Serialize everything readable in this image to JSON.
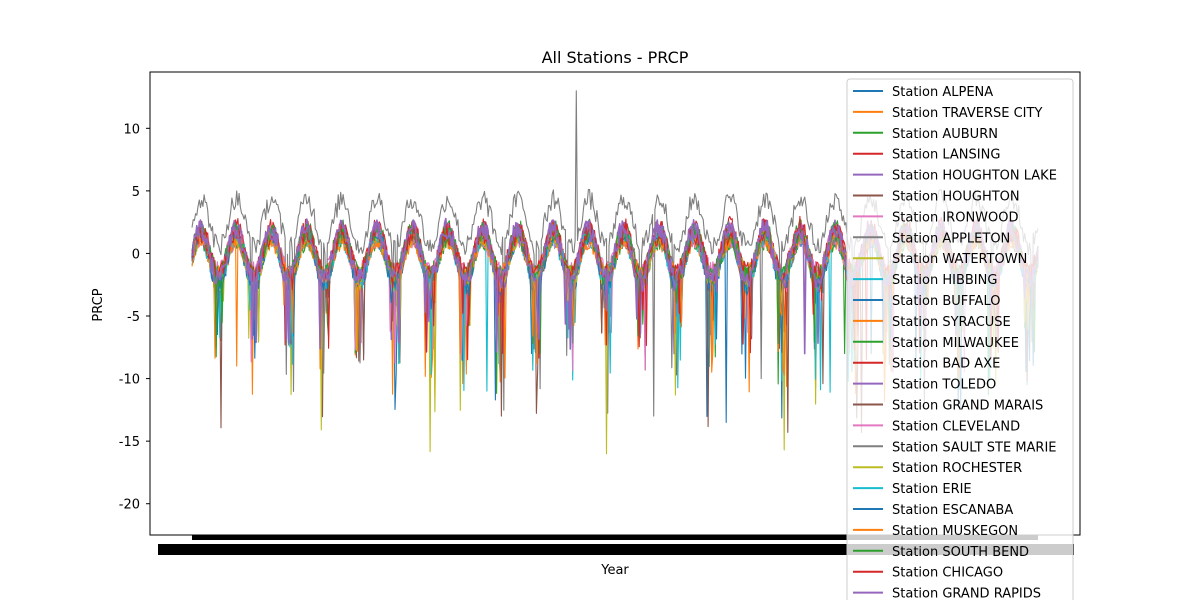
{
  "chart_data": {
    "type": "line",
    "title": "All Stations - PRCP",
    "xlabel": "Year",
    "ylabel": "PRCP",
    "ylim": [
      -22.5,
      14.5
    ],
    "yticks": [
      -20,
      -15,
      -10,
      -5,
      0,
      5,
      10
    ],
    "grid": false,
    "legend_position": "right, overflowing below plot",
    "x_tick_labels_overlapping": true,
    "series_pattern": "seasonal oscillation, about 24 cycles across the x range",
    "series": [
      {
        "name": "Station ALPENA",
        "color": "#1f77b4",
        "approx_max": 1.5,
        "approx_min": -13.5
      },
      {
        "name": "Station TRAVERSE CITY",
        "color": "#ff7f0e",
        "approx_max": 2.5,
        "approx_min": -12.0
      },
      {
        "name": "Station AUBURN",
        "color": "#2ca02c",
        "approx_max": 3.8,
        "approx_min": -11.3
      },
      {
        "name": "Station LANSING",
        "color": "#d62728",
        "approx_max": 3.5,
        "approx_min": -8.5
      },
      {
        "name": "Station HOUGHTON LAKE",
        "color": "#9467bd",
        "approx_max": 2.5,
        "approx_min": -8.0
      },
      {
        "name": "Station HOUGHTON",
        "color": "#8c564b",
        "approx_max": 2.0,
        "approx_min": -14.3
      },
      {
        "name": "Station IRONWOOD",
        "color": "#e377c2",
        "approx_max": 3.4,
        "approx_min": -9.5
      },
      {
        "name": "Station APPLETON",
        "color": "#7f7f7f",
        "approx_max": 13.0,
        "approx_min": -13.0
      },
      {
        "name": "Station WATERTOWN",
        "color": "#bcbd22",
        "approx_max": 1.5,
        "approx_min": -16.0
      },
      {
        "name": "Station HIBBING",
        "color": "#17becf",
        "approx_max": 1.6,
        "approx_min": -11.0
      },
      {
        "name": "Station BUFFALO",
        "color": "#1f77b4",
        "approx_max": 1.2,
        "approx_min": -9.0
      },
      {
        "name": "Station SYRACUSE",
        "color": "#ff7f0e",
        "approx_max": 1.5,
        "approx_min": -11.9
      },
      {
        "name": "Station MILWAUKEE",
        "color": "#2ca02c",
        "approx_max": 2.0,
        "approx_min": -8.0
      },
      {
        "name": "Station BAD AXE",
        "color": "#d62728",
        "approx_max": 3.2,
        "approx_min": -8.5
      },
      {
        "name": "Station TOLEDO",
        "color": "#9467bd",
        "approx_max": 2.8,
        "approx_min": -7.0
      },
      {
        "name": "Station GRAND MARAIS",
        "color": "#8c564b",
        "approx_max": 1.8,
        "approx_min": -14.3
      },
      {
        "name": "Station CLEVELAND",
        "color": "#e377c2",
        "approx_max": 2.0,
        "approx_min": -9.5
      },
      {
        "name": "Station SAULT STE MARIE",
        "color": "#7f7f7f",
        "approx_max": 2.0,
        "approx_min": -10.0
      },
      {
        "name": "Station ROCHESTER",
        "color": "#bcbd22",
        "approx_max": 1.5,
        "approx_min": -8.0
      },
      {
        "name": "Station ERIE",
        "color": "#17becf",
        "approx_max": 1.8,
        "approx_min": -11.1
      },
      {
        "name": "Station ESCANABA",
        "color": "#1f77b4",
        "approx_max": 1.5,
        "approx_min": -8.0
      },
      {
        "name": "Station MUSKEGON",
        "color": "#ff7f0e",
        "approx_max": 2.0,
        "approx_min": -9.0
      },
      {
        "name": "Station SOUTH BEND",
        "color": "#2ca02c",
        "approx_max": 3.0,
        "approx_min": -7.5
      },
      {
        "name": "Station CHICAGO",
        "color": "#d62728",
        "approx_max": 3.3,
        "approx_min": -8.0
      },
      {
        "name": "Station GRAND RAPIDS",
        "color": "#9467bd",
        "approx_max": 3.0,
        "approx_min": -8.0
      }
    ]
  }
}
